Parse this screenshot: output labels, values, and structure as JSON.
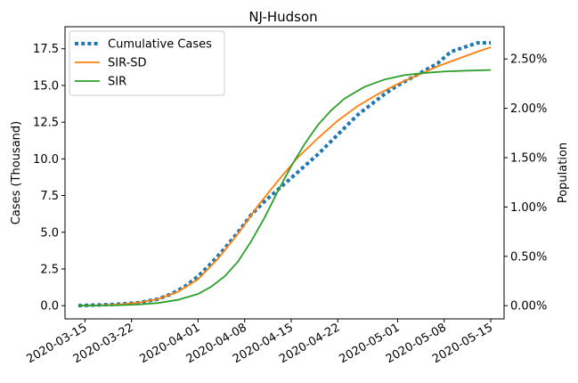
{
  "chart_data": {
    "type": "line",
    "title": "NJ-Hudson",
    "xlabel": "",
    "ylabel": "Cases (Thousand)",
    "y2label": "Population",
    "xlim": [
      "2020-03-12",
      "2020-05-17"
    ],
    "ylim": [
      -0.9,
      19.0
    ],
    "y2lim": [
      -0.00134,
      0.02827
    ],
    "grid": false,
    "legend_position": "top-left",
    "x_ticks": [
      "2020-03-15",
      "2020-03-22",
      "2020-04-01",
      "2020-04-08",
      "2020-04-15",
      "2020-04-22",
      "2020-05-01",
      "2020-05-08",
      "2020-05-15"
    ],
    "y_ticks": [
      "0.0",
      "2.5",
      "5.0",
      "7.5",
      "10.0",
      "12.5",
      "15.0",
      "17.5"
    ],
    "y_tick_values": [
      0,
      2.5,
      5,
      7.5,
      10,
      12.5,
      15,
      17.5
    ],
    "y2_ticks": [
      "0.00%",
      "0.50%",
      "1.00%",
      "1.50%",
      "2.00%",
      "2.50%"
    ],
    "y2_tick_values": [
      0,
      0.005,
      0.01,
      0.015,
      0.02,
      0.025
    ],
    "series": [
      {
        "name": "Cumulative Cases",
        "style": "dotted",
        "color": "#1f77b4",
        "x": [
          "2020-03-14",
          "2020-03-17",
          "2020-03-20",
          "2020-03-23",
          "2020-03-26",
          "2020-03-28",
          "2020-03-30",
          "2020-04-01",
          "2020-04-03",
          "2020-04-05",
          "2020-04-07",
          "2020-04-09",
          "2020-04-11",
          "2020-04-13",
          "2020-04-15",
          "2020-04-17",
          "2020-04-19",
          "2020-04-21",
          "2020-04-23",
          "2020-04-25",
          "2020-04-27",
          "2020-04-29",
          "2020-05-01",
          "2020-05-03",
          "2020-05-05",
          "2020-05-07",
          "2020-05-09",
          "2020-05-11",
          "2020-05-13",
          "2020-05-15"
        ],
        "y": [
          0.0,
          0.05,
          0.1,
          0.2,
          0.45,
          0.8,
          1.3,
          2.0,
          2.9,
          3.9,
          5.0,
          6.2,
          7.1,
          7.9,
          8.7,
          9.5,
          10.3,
          11.2,
          12.1,
          13.0,
          13.7,
          14.4,
          15.0,
          15.5,
          16.0,
          16.5,
          17.3,
          17.6,
          17.9,
          17.9
        ]
      },
      {
        "name": "SIR-SD",
        "style": "solid",
        "color": "#ff7f0e",
        "x": [
          "2020-03-14",
          "2020-03-17",
          "2020-03-20",
          "2020-03-23",
          "2020-03-26",
          "2020-03-29",
          "2020-04-01",
          "2020-04-04",
          "2020-04-07",
          "2020-04-10",
          "2020-04-13",
          "2020-04-16",
          "2020-04-19",
          "2020-04-22",
          "2020-04-25",
          "2020-04-28",
          "2020-05-01",
          "2020-05-04",
          "2020-05-07",
          "2020-05-10",
          "2020-05-13",
          "2020-05-15"
        ],
        "y": [
          0.0,
          0.02,
          0.08,
          0.2,
          0.45,
          0.95,
          1.8,
          3.2,
          4.9,
          6.8,
          8.5,
          10.1,
          11.4,
          12.6,
          13.6,
          14.4,
          15.1,
          15.7,
          16.3,
          16.8,
          17.3,
          17.6
        ]
      },
      {
        "name": "SIR",
        "style": "solid",
        "color": "#2ca02c",
        "x": [
          "2020-03-14",
          "2020-03-17",
          "2020-03-20",
          "2020-03-23",
          "2020-03-26",
          "2020-03-29",
          "2020-04-01",
          "2020-04-03",
          "2020-04-05",
          "2020-04-07",
          "2020-04-09",
          "2020-04-11",
          "2020-04-13",
          "2020-04-15",
          "2020-04-17",
          "2020-04-19",
          "2020-04-21",
          "2020-04-23",
          "2020-04-26",
          "2020-04-29",
          "2020-05-02",
          "2020-05-05",
          "2020-05-08",
          "2020-05-11",
          "2020-05-15"
        ],
        "y": [
          0.0,
          0.01,
          0.03,
          0.08,
          0.18,
          0.4,
          0.8,
          1.3,
          2.0,
          3.0,
          4.4,
          6.0,
          7.8,
          9.5,
          11.0,
          12.3,
          13.3,
          14.1,
          14.9,
          15.4,
          15.7,
          15.85,
          15.95,
          16.0,
          16.05
        ]
      }
    ]
  }
}
